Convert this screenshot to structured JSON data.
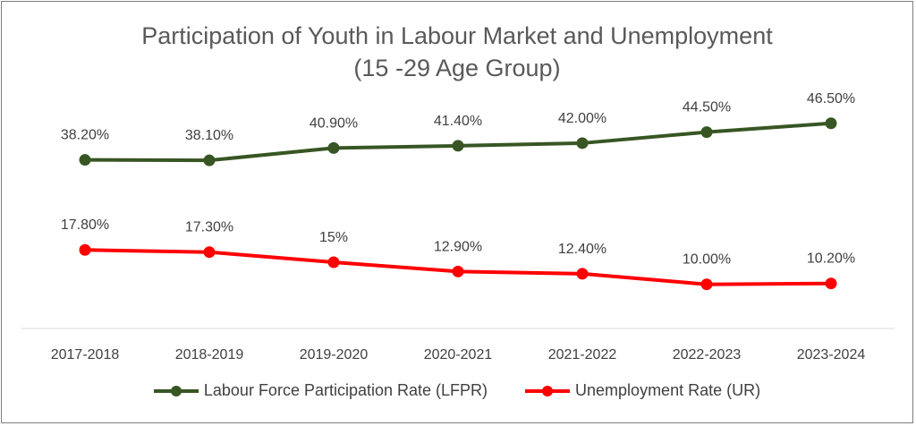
{
  "chart_data": {
    "type": "line",
    "title_line1": "Participation of Youth in Labour Market and Unemployment",
    "title_line2": "(15 -29 Age Group)",
    "categories": [
      "2017-2018",
      "2018-2019",
      "2019-2020",
      "2020-2021",
      "2021-2022",
      "2022-2023",
      "2023-2024"
    ],
    "series": [
      {
        "name": "Labour Force Participation Rate (LFPR)",
        "color": "#375623",
        "values": [
          38.2,
          38.1,
          40.9,
          41.4,
          42.0,
          44.5,
          46.5
        ],
        "labels": [
          "38.20%",
          "38.10%",
          "40.90%",
          "41.40%",
          "42.00%",
          "44.50%",
          "46.50%"
        ]
      },
      {
        "name": "Unemployment Rate (UR)",
        "color": "#ff0000",
        "values": [
          17.8,
          17.3,
          15.0,
          12.9,
          12.4,
          10.0,
          10.2
        ],
        "labels": [
          "17.80%",
          "17.30%",
          "15%",
          "12.90%",
          "12.40%",
          "10.00%",
          "10.20%"
        ]
      }
    ],
    "ylim": [
      0,
      50
    ],
    "grid": false,
    "legend_position": "bottom"
  }
}
